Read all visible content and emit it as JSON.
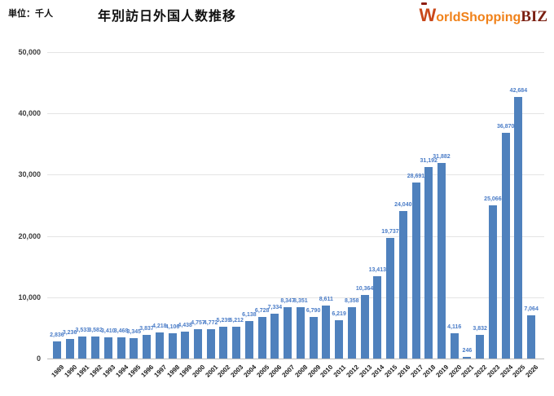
{
  "header": {
    "unit_label": "単位：千人",
    "title": "年別訪日外国人数推移",
    "logo": {
      "prefix_w": "W",
      "word_rest": "orldShopping",
      "suffix": "BIZ"
    }
  },
  "chart_data": {
    "type": "bar",
    "title": "年別訪日外国人数推移",
    "unit": "千人",
    "categories": [
      "1989",
      "1990",
      "1991",
      "1992",
      "1993",
      "1994",
      "1995",
      "1996",
      "1997",
      "1998",
      "1999",
      "2000",
      "2001",
      "2002",
      "2003",
      "2004",
      "2005",
      "2006",
      "2007",
      "2008",
      "2009",
      "2010",
      "2011",
      "2012",
      "2013",
      "2014",
      "2015",
      "2016",
      "2017",
      "2018",
      "2019",
      "2020",
      "2021",
      "2022",
      "2023",
      "2024",
      "2025",
      "2026"
    ],
    "values": [
      2836,
      3236,
      3533,
      3582,
      3410,
      3468,
      3345,
      3837,
      4218,
      4106,
      4438,
      4757,
      4772,
      5239,
      5212,
      6138,
      6728,
      7334,
      8347,
      8351,
      6790,
      8611,
      6219,
      8358,
      10364,
      13413,
      19737,
      24040,
      28691,
      31192,
      31882,
      4116,
      246,
      3832,
      25066,
      36870,
      42684,
      7064
    ],
    "ylim": [
      0,
      50000
    ],
    "yticks": [
      0,
      10000,
      20000,
      30000,
      40000,
      50000
    ],
    "grid": true,
    "legend_position": "none",
    "bar_color": "#4f81bd",
    "value_label_color": "#4a7cc7",
    "gridline_color": "#e4e4e4"
  }
}
